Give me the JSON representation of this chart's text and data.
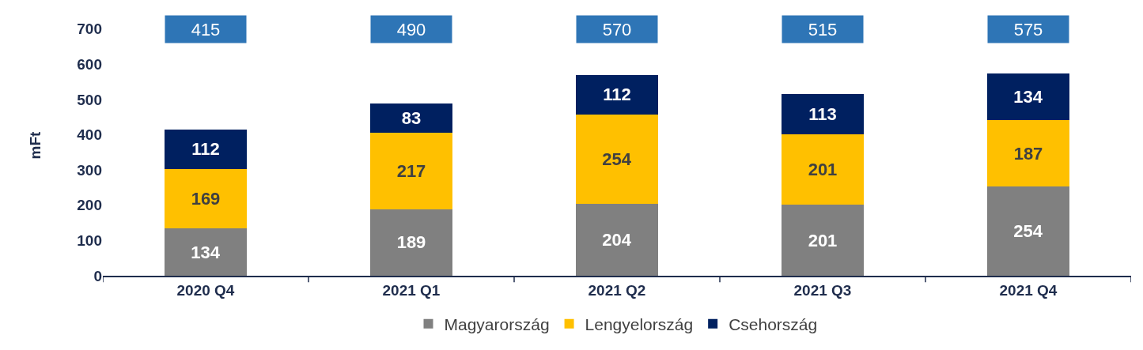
{
  "chart_data": {
    "type": "bar",
    "stacked": true,
    "ylabel": "mFt",
    "categories": [
      "2020 Q4",
      "2021 Q1",
      "2021 Q2",
      "2021 Q3",
      "2021 Q4"
    ],
    "series": [
      {
        "name": "Magyarország",
        "color": "#808080",
        "values": [
          134,
          189,
          204,
          201,
          254
        ]
      },
      {
        "name": "Lengyelország",
        "color": "#ffc000",
        "values": [
          169,
          217,
          254,
          201,
          187
        ]
      },
      {
        "name": "Csehország",
        "color": "#002060",
        "values": [
          112,
          83,
          112,
          113,
          134
        ]
      }
    ],
    "annotations": [
      "415",
      "490",
      "570",
      "515",
      "575"
    ],
    "data_labels": true,
    "ylim": [
      0,
      740
    ],
    "yticks": [
      0,
      100,
      200,
      300,
      400,
      500,
      600,
      700
    ],
    "legend": "bottom"
  }
}
